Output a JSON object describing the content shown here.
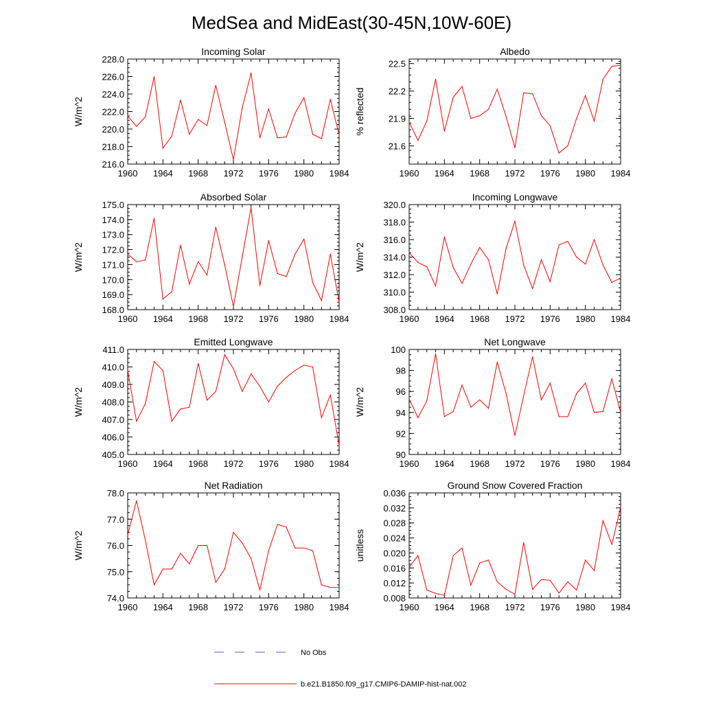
{
  "figure": {
    "title": "MedSea and MidEast(30-45N,10W-60E)",
    "series_color": "#ff0000",
    "obs_color": "#5a5adc"
  },
  "legend": {
    "obs_label": "No Obs",
    "model_label": "b.e21.B1850.f09_g17.CMIP6-DAMIP-hist-nat.002"
  },
  "chart_data": [
    {
      "type": "line",
      "title": "Incoming Solar",
      "ylabel": "W/m^2",
      "xlim": [
        1960,
        1984
      ],
      "ylim": [
        216,
        228
      ],
      "xticks": [
        1960,
        1964,
        1968,
        1972,
        1976,
        1980,
        1984
      ],
      "yticks": [
        216,
        218,
        220,
        222,
        224,
        226,
        228
      ],
      "ytick_labels": [
        "216.0",
        "218.0",
        "220.0",
        "222.0",
        "224.0",
        "226.0",
        "228.0"
      ],
      "x": [
        1960,
        1961,
        1962,
        1963,
        1964,
        1965,
        1966,
        1967,
        1968,
        1969,
        1970,
        1971,
        1972,
        1973,
        1974,
        1975,
        1976,
        1977,
        1978,
        1979,
        1980,
        1981,
        1982,
        1983,
        1984
      ],
      "series": [
        {
          "name": "b.e21.B1850.f09_g17.CMIP6-DAMIP-hist-nat.002",
          "values": [
            221.5,
            220.3,
            221.4,
            226.0,
            217.8,
            219.2,
            223.3,
            219.4,
            221.1,
            220.4,
            225.0,
            220.8,
            216.5,
            222.4,
            226.4,
            219.0,
            222.3,
            219.0,
            219.1,
            221.8,
            223.6,
            219.4,
            218.9,
            223.4,
            219.3
          ]
        }
      ]
    },
    {
      "type": "line",
      "title": "Albedo",
      "ylabel": "% reflected",
      "xlim": [
        1960,
        1984
      ],
      "ylim": [
        21.4,
        22.55
      ],
      "xticks": [
        1960,
        1964,
        1968,
        1972,
        1976,
        1980,
        1984
      ],
      "yticks": [
        21.6,
        21.9,
        22.2,
        22.5
      ],
      "ytick_labels": [
        "21.6",
        "21.9",
        "22.2",
        "22.5"
      ],
      "x": [
        1960,
        1961,
        1962,
        1963,
        1964,
        1965,
        1966,
        1967,
        1968,
        1969,
        1970,
        1971,
        1972,
        1973,
        1974,
        1975,
        1976,
        1977,
        1978,
        1979,
        1980,
        1981,
        1982,
        1983,
        1984
      ],
      "series": [
        {
          "name": "b.e21.B1850.f09_g17.CMIP6-DAMIP-hist-nat.002",
          "values": [
            21.86,
            21.66,
            21.87,
            22.33,
            21.76,
            22.13,
            22.25,
            21.9,
            21.93,
            22.0,
            22.22,
            21.92,
            21.58,
            22.18,
            22.17,
            21.93,
            21.82,
            21.52,
            21.6,
            21.9,
            22.15,
            21.87,
            22.33,
            22.47,
            22.48
          ]
        }
      ]
    },
    {
      "type": "line",
      "title": "Absorbed Solar",
      "ylabel": "W/m^2",
      "xlim": [
        1960,
        1984
      ],
      "ylim": [
        168,
        175
      ],
      "xticks": [
        1960,
        1964,
        1968,
        1972,
        1976,
        1980,
        1984
      ],
      "yticks": [
        168,
        169,
        170,
        171,
        172,
        173,
        174,
        175
      ],
      "ytick_labels": [
        "168.0",
        "169.0",
        "170.0",
        "171.0",
        "172.0",
        "173.0",
        "174.0",
        "175.0"
      ],
      "x": [
        1960,
        1961,
        1962,
        1963,
        1964,
        1965,
        1966,
        1967,
        1968,
        1969,
        1970,
        1971,
        1972,
        1973,
        1974,
        1975,
        1976,
        1977,
        1978,
        1979,
        1980,
        1981,
        1982,
        1983,
        1984
      ],
      "series": [
        {
          "name": "b.e21.B1850.f09_g17.CMIP6-DAMIP-hist-nat.002",
          "values": [
            171.7,
            171.2,
            171.3,
            174.1,
            168.7,
            169.2,
            172.3,
            169.7,
            171.2,
            170.3,
            173.5,
            171.0,
            168.2,
            171.5,
            174.8,
            169.6,
            172.6,
            170.4,
            170.2,
            171.7,
            172.7,
            169.8,
            168.6,
            171.7,
            168.5
          ]
        }
      ]
    },
    {
      "type": "line",
      "title": "Incoming Longwave",
      "ylabel": "W/m^2",
      "xlim": [
        1960,
        1984
      ],
      "ylim": [
        308,
        320
      ],
      "xticks": [
        1960,
        1964,
        1968,
        1972,
        1976,
        1980,
        1984
      ],
      "yticks": [
        308,
        310,
        312,
        314,
        316,
        318,
        320
      ],
      "ytick_labels": [
        "308.0",
        "310.0",
        "312.0",
        "314.0",
        "316.0",
        "318.0",
        "320.0"
      ],
      "x": [
        1960,
        1961,
        1962,
        1963,
        1964,
        1965,
        1966,
        1967,
        1968,
        1969,
        1970,
        1971,
        1972,
        1973,
        1974,
        1975,
        1976,
        1977,
        1978,
        1979,
        1980,
        1981,
        1982,
        1983,
        1984
      ],
      "series": [
        {
          "name": "b.e21.B1850.f09_g17.CMIP6-DAMIP-hist-nat.002",
          "values": [
            314.5,
            313.4,
            312.9,
            310.7,
            316.3,
            312.8,
            311.0,
            313.2,
            315.1,
            313.7,
            309.8,
            315.0,
            318.1,
            313.1,
            310.4,
            313.7,
            311.2,
            315.4,
            315.8,
            314.0,
            313.2,
            316.0,
            313.1,
            311.1,
            311.6
          ]
        }
      ]
    },
    {
      "type": "line",
      "title": "Emitted Longwave",
      "ylabel": "W/m^2",
      "xlim": [
        1960,
        1984
      ],
      "ylim": [
        405,
        411
      ],
      "xticks": [
        1960,
        1964,
        1968,
        1972,
        1976,
        1980,
        1984
      ],
      "yticks": [
        405,
        406,
        407,
        408,
        409,
        410,
        411
      ],
      "ytick_labels": [
        "405.0",
        "406.0",
        "407.0",
        "408.0",
        "409.0",
        "410.0",
        "411.0"
      ],
      "x": [
        1960,
        1961,
        1962,
        1963,
        1964,
        1965,
        1966,
        1967,
        1968,
        1969,
        1970,
        1971,
        1972,
        1973,
        1974,
        1975,
        1976,
        1977,
        1978,
        1979,
        1980,
        1981,
        1982,
        1983,
        1984
      ],
      "series": [
        {
          "name": "b.e21.B1850.f09_g17.CMIP6-DAMIP-hist-nat.002",
          "values": [
            409.8,
            406.9,
            407.9,
            410.3,
            409.8,
            406.9,
            407.6,
            407.7,
            410.2,
            408.1,
            408.6,
            410.7,
            409.9,
            408.6,
            409.6,
            408.9,
            408.0,
            408.9,
            409.4,
            409.8,
            410.1,
            410.0,
            407.1,
            408.4,
            405.5
          ]
        }
      ]
    },
    {
      "type": "line",
      "title": "Net Longwave",
      "ylabel": "W/m^2",
      "xlim": [
        1960,
        1984
      ],
      "ylim": [
        90,
        100
      ],
      "xticks": [
        1960,
        1964,
        1968,
        1972,
        1976,
        1980,
        1984
      ],
      "yticks": [
        90,
        92,
        94,
        96,
        98,
        100
      ],
      "ytick_labels": [
        "90",
        "92",
        "94",
        "96",
        "98",
        "100"
      ],
      "x": [
        1960,
        1961,
        1962,
        1963,
        1964,
        1965,
        1966,
        1967,
        1968,
        1969,
        1970,
        1971,
        1972,
        1973,
        1974,
        1975,
        1976,
        1977,
        1978,
        1979,
        1980,
        1981,
        1982,
        1983,
        1984
      ],
      "series": [
        {
          "name": "b.e21.B1850.f09_g17.CMIP6-DAMIP-hist-nat.002",
          "values": [
            95.3,
            93.5,
            95.1,
            99.6,
            93.6,
            94.1,
            96.6,
            94.5,
            95.2,
            94.4,
            98.8,
            95.8,
            91.8,
            95.6,
            99.3,
            95.2,
            96.8,
            93.6,
            93.6,
            95.8,
            96.8,
            94.0,
            94.1,
            97.2,
            94.0
          ]
        }
      ]
    },
    {
      "type": "line",
      "title": "Net Radiation",
      "ylabel": "W/m^2",
      "xlim": [
        1960,
        1984
      ],
      "ylim": [
        74,
        78
      ],
      "xticks": [
        1960,
        1964,
        1968,
        1972,
        1976,
        1980,
        1984
      ],
      "yticks": [
        74,
        75,
        76,
        77,
        78
      ],
      "ytick_labels": [
        "74.0",
        "75.0",
        "76.0",
        "77.0",
        "78.0"
      ],
      "x": [
        1960,
        1961,
        1962,
        1963,
        1964,
        1965,
        1966,
        1967,
        1968,
        1969,
        1970,
        1971,
        1972,
        1973,
        1974,
        1975,
        1976,
        1977,
        1978,
        1979,
        1980,
        1981,
        1982,
        1983,
        1984
      ],
      "series": [
        {
          "name": "b.e21.B1850.f09_g17.CMIP6-DAMIP-hist-nat.002",
          "values": [
            76.4,
            77.7,
            76.2,
            74.5,
            75.1,
            75.1,
            75.7,
            75.3,
            76.0,
            76.0,
            74.6,
            75.1,
            76.5,
            76.1,
            75.5,
            74.3,
            75.8,
            76.8,
            76.7,
            75.9,
            75.9,
            75.8,
            74.5,
            74.4,
            74.4
          ]
        }
      ]
    },
    {
      "type": "line",
      "title": "Ground Snow Covered Fraction",
      "ylabel": "unitless",
      "xlim": [
        1960,
        1984
      ],
      "ylim": [
        0.008,
        0.036
      ],
      "xticks": [
        1960,
        1964,
        1968,
        1972,
        1976,
        1980,
        1984
      ],
      "yticks": [
        0.008,
        0.012,
        0.016,
        0.02,
        0.024,
        0.028,
        0.032,
        0.036
      ],
      "ytick_labels": [
        "0.008",
        "0.012",
        "0.016",
        "0.020",
        "0.024",
        "0.028",
        "0.032",
        "0.036"
      ],
      "x": [
        1960,
        1961,
        1962,
        1963,
        1964,
        1965,
        1966,
        1967,
        1968,
        1969,
        1970,
        1971,
        1972,
        1973,
        1974,
        1975,
        1976,
        1977,
        1978,
        1979,
        1980,
        1981,
        1982,
        1983,
        1984
      ],
      "series": [
        {
          "name": "b.e21.B1850.f09_g17.CMIP6-DAMIP-hist-nat.002",
          "values": [
            0.0162,
            0.0193,
            0.0101,
            0.0092,
            0.0087,
            0.0193,
            0.0213,
            0.0114,
            0.0173,
            0.0181,
            0.0123,
            0.0103,
            0.009,
            0.0228,
            0.0103,
            0.0129,
            0.0127,
            0.0093,
            0.0123,
            0.0101,
            0.0181,
            0.0153,
            0.0286,
            0.0223,
            0.0322
          ]
        }
      ]
    }
  ]
}
